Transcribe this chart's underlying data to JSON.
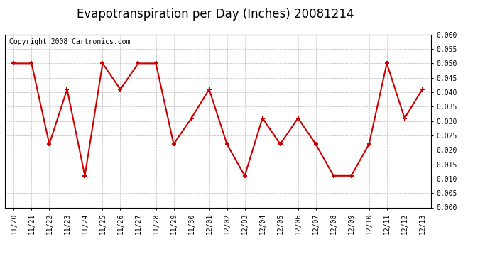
{
  "title": "Evapotranspiration per Day (Inches) 20081214",
  "copyright": "Copyright 2008 Cartronics.com",
  "x_labels": [
    "11/20",
    "11/21",
    "11/22",
    "11/23",
    "11/24",
    "11/25",
    "11/26",
    "11/27",
    "11/28",
    "11/29",
    "11/30",
    "12/01",
    "12/02",
    "12/03",
    "12/04",
    "12/05",
    "12/06",
    "12/07",
    "12/08",
    "12/09",
    "12/10",
    "12/11",
    "12/12",
    "12/13"
  ],
  "y_values": [
    0.05,
    0.05,
    0.022,
    0.041,
    0.011,
    0.05,
    0.041,
    0.05,
    0.05,
    0.022,
    0.031,
    0.041,
    0.022,
    0.011,
    0.031,
    0.022,
    0.031,
    0.022,
    0.011,
    0.011,
    0.022,
    0.05,
    0.031,
    0.041
  ],
  "line_color": "#cc0000",
  "marker": "+",
  "marker_size": 5,
  "marker_linewidth": 1.5,
  "linewidth": 1.5,
  "ylim": [
    0.0,
    0.06
  ],
  "yticks": [
    0.0,
    0.005,
    0.01,
    0.015,
    0.02,
    0.025,
    0.03,
    0.035,
    0.04,
    0.045,
    0.05,
    0.055,
    0.06
  ],
  "grid_color": "#bbbbbb",
  "background_color": "#ffffff",
  "plot_bg_color": "#ffffff",
  "title_fontsize": 12,
  "tick_fontsize": 7,
  "copyright_fontsize": 7
}
